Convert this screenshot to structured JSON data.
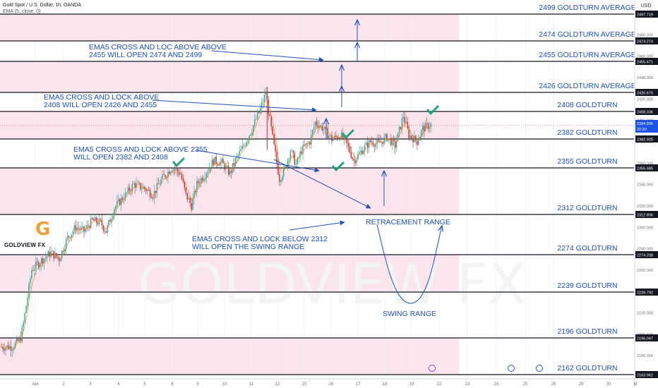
{
  "header": {
    "symbol": "Gold Spot / U.S. Dollar, 1h, OANDA",
    "indicator": "EMA (5, close, 0)",
    "currency_button": "USD"
  },
  "logo": {
    "text": "GOLDVIEW FX"
  },
  "watermark": "GOLDVIEW FX",
  "colors": {
    "zone": "#fce4ec",
    "level_line": "#131722",
    "annotation": "#1e4fbd",
    "check": "#1fa37a",
    "candle_up": "#26a69a",
    "candle_down": "#c62828",
    "ema": "#f57c00"
  },
  "chart_data": {
    "type": "candlestick",
    "y_range": [
      2150,
      2520
    ],
    "y_ticks": [
      2180,
      2200,
      2220,
      2240,
      2260,
      2280,
      2300,
      2320,
      2340,
      2360,
      2380,
      2400,
      2420,
      2440,
      2460,
      2480,
      2500
    ],
    "y_tick_labels": [
      "2180.000",
      "2200.000",
      "2220.000",
      "2240.000",
      "2260.000",
      "2280.000",
      "2300.000",
      "2320.000",
      "2340.000",
      "2360.000",
      "2380.000",
      "2400.000",
      "2420.000",
      "2440.000",
      "2460.000",
      "2480.000",
      "2500.000"
    ],
    "x_axis_labels": [
      "Apr",
      "2",
      "3",
      "4",
      "5",
      "8",
      "9",
      "10",
      "11",
      "12",
      "15",
      "16",
      "17",
      "18",
      "19",
      "22",
      "23",
      "24",
      "25",
      "26",
      "29",
      "30",
      "M"
    ],
    "price_tag": {
      "price": "2394.895",
      "countdown": "22:20"
    },
    "levels": [
      {
        "price": 2499,
        "name": "2499 GOLDTURN AVERAGE",
        "tag": "2497.719"
      },
      {
        "price": 2474,
        "name": "2474 GOLDTURN AVERAGE",
        "tag": "2474.274"
      },
      {
        "price": 2455,
        "name": "2455 GOLDTURN AVERAGE",
        "tag": "2455.471"
      },
      {
        "price": 2426,
        "name": "2426 GOLDTURN AVERAGE",
        "tag": "2426.670"
      },
      {
        "price": 2408,
        "name": "2408 GOLDTURN",
        "tag": "2408.336"
      },
      {
        "price": 2382,
        "name": "2382 GOLDTURN",
        "tag": "2382.925"
      },
      {
        "price": 2355,
        "name": "2355 GOLDTURN",
        "tag": "2355.585"
      },
      {
        "price": 2312,
        "name": "2312 GOLDTURN",
        "tag": "2312.806"
      },
      {
        "price": 2274,
        "name": "2274 GOLDTURN",
        "tag": "2274.208"
      },
      {
        "price": 2239,
        "name": "2239 GOLDTURN",
        "tag": "2239.792"
      },
      {
        "price": 2196,
        "name": "2196 GOLDTURN",
        "tag": "2196.047"
      },
      {
        "price": 2162,
        "name": "2162 GOLDTURN",
        "tag": "2163.962"
      }
    ],
    "annotations": [
      {
        "lines": [
          "EMA5 CROSS AND LOC ABOVE ABOVE",
          "2455 WILL OPEN 2474 AND 2499"
        ]
      },
      {
        "lines": [
          "EMA5 CROSS AND LOCK ABOVE",
          "2408 WILL OPEN 2426 AND 2455"
        ]
      },
      {
        "lines": [
          "EMA5 CROSS AND LOCK ABOVE 2355",
          "WILL OPEN 2382 AND 2408"
        ]
      },
      {
        "lines": [
          "EMA5 CROSS AND LOCK BELOW 2312",
          "WILL OPEN THE SWING  RANGE"
        ]
      },
      {
        "lines": [
          "RETRACEMENT RANGE"
        ]
      },
      {
        "lines": [
          "SWING RANGE"
        ]
      }
    ],
    "price_path": [
      [
        0,
        2188
      ],
      [
        8,
        2188
      ],
      [
        14,
        2196
      ],
      [
        16,
        2210
      ],
      [
        22,
        2260
      ],
      [
        30,
        2270
      ],
      [
        36,
        2276
      ],
      [
        42,
        2270
      ],
      [
        48,
        2290
      ],
      [
        54,
        2300
      ],
      [
        60,
        2296
      ],
      [
        66,
        2306
      ],
      [
        72,
        2304
      ],
      [
        76,
        2296
      ],
      [
        82,
        2318
      ],
      [
        90,
        2330
      ],
      [
        96,
        2340
      ],
      [
        104,
        2336
      ],
      [
        110,
        2330
      ],
      [
        116,
        2344
      ],
      [
        124,
        2356
      ],
      [
        130,
        2350
      ],
      [
        134,
        2330
      ],
      [
        138,
        2320
      ],
      [
        142,
        2340
      ],
      [
        148,
        2350
      ],
      [
        154,
        2362
      ],
      [
        160,
        2360
      ],
      [
        166,
        2350
      ],
      [
        170,
        2362
      ],
      [
        176,
        2376
      ],
      [
        182,
        2392
      ],
      [
        188,
        2410
      ],
      [
        192,
        2426
      ],
      [
        195,
        2400
      ],
      [
        198,
        2375
      ],
      [
        202,
        2345
      ],
      [
        206,
        2355
      ],
      [
        210,
        2372
      ],
      [
        214,
        2358
      ],
      [
        218,
        2372
      ],
      [
        224,
        2380
      ],
      [
        228,
        2398
      ],
      [
        234,
        2392
      ],
      [
        240,
        2382
      ],
      [
        246,
        2386
      ],
      [
        250,
        2380
      ],
      [
        256,
        2362
      ],
      [
        262,
        2372
      ],
      [
        268,
        2380
      ],
      [
        274,
        2378
      ],
      [
        280,
        2384
      ],
      [
        286,
        2376
      ],
      [
        292,
        2404
      ],
      [
        296,
        2386
      ],
      [
        302,
        2380
      ],
      [
        306,
        2392
      ],
      [
        312,
        2396
      ]
    ]
  }
}
